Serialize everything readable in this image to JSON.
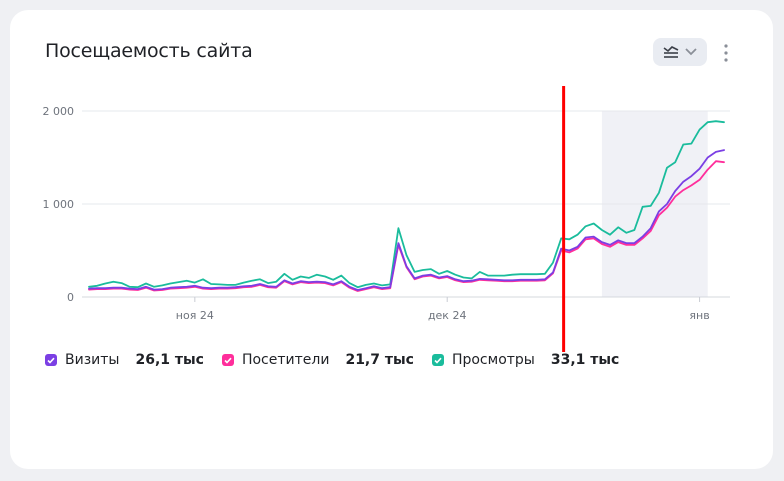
{
  "header": {
    "title": "Посещаемость сайта",
    "toggle_icon": "chart-settings-icon",
    "menu_icon": "more-vertical-icon"
  },
  "colors": {
    "visits": "#7b3fe4",
    "visitors": "#ff2e9b",
    "views": "#1abc9c",
    "annotation": "#ff0000",
    "shaded_period": "#f0f1f6"
  },
  "legend": [
    {
      "key": "visits",
      "name": "Визиты",
      "total": "26,1 тыс",
      "checked": true
    },
    {
      "key": "visitors",
      "name": "Посетители",
      "total": "21,7 тыс",
      "checked": true
    },
    {
      "key": "views",
      "name": "Просмотры",
      "total": "33,1 тыс",
      "checked": true
    }
  ],
  "chart_data": {
    "type": "line",
    "x_label_positions": {
      "ноя 24": 13,
      "дек 24": 44,
      "янв": 75
    },
    "xticks": [
      "ноя 24",
      "дек 24",
      "янв"
    ],
    "yticks": [
      "0",
      "1 000",
      "2 000"
    ],
    "ylim": [
      0,
      2000
    ],
    "grid": true,
    "shaded_range": [
      63,
      76
    ],
    "series": [
      {
        "name": "Визиты",
        "key": "visits",
        "values": [
          90,
          95,
          95,
          100,
          100,
          90,
          85,
          110,
          80,
          85,
          100,
          105,
          110,
          120,
          100,
          95,
          100,
          100,
          105,
          115,
          120,
          140,
          115,
          110,
          180,
          145,
          170,
          160,
          165,
          160,
          135,
          170,
          110,
          75,
          95,
          115,
          95,
          105,
          580,
          330,
          200,
          230,
          240,
          210,
          225,
          190,
          170,
          175,
          195,
          190,
          185,
          180,
          180,
          185,
          185,
          185,
          190,
          265,
          520,
          500,
          540,
          640,
          650,
          590,
          560,
          610,
          580,
          580,
          650,
          740,
          920,
          1000,
          1140,
          1240,
          1300,
          1380,
          1500,
          1560,
          1580
        ]
      },
      {
        "name": "Посетители",
        "key": "visitors",
        "values": [
          80,
          85,
          85,
          90,
          90,
          80,
          75,
          100,
          70,
          75,
          90,
          95,
          100,
          110,
          90,
          85,
          90,
          90,
          95,
          105,
          110,
          130,
          105,
          100,
          170,
          135,
          160,
          150,
          155,
          150,
          125,
          160,
          100,
          65,
          85,
          105,
          85,
          95,
          560,
          320,
          190,
          220,
          230,
          200,
          215,
          180,
          160,
          165,
          185,
          180,
          175,
          170,
          170,
          175,
          175,
          175,
          180,
          255,
          500,
          480,
          520,
          620,
          630,
          570,
          540,
          590,
          560,
          560,
          630,
          710,
          880,
          960,
          1080,
          1150,
          1200,
          1260,
          1370,
          1460,
          1450
        ]
      },
      {
        "name": "Просмотры",
        "key": "views",
        "values": [
          110,
          120,
          145,
          165,
          150,
          110,
          105,
          145,
          110,
          125,
          145,
          160,
          175,
          155,
          190,
          140,
          135,
          130,
          130,
          155,
          175,
          190,
          150,
          165,
          250,
          185,
          220,
          205,
          240,
          220,
          185,
          230,
          150,
          105,
          130,
          145,
          125,
          135,
          740,
          450,
          270,
          290,
          300,
          250,
          280,
          240,
          210,
          200,
          270,
          230,
          230,
          230,
          240,
          245,
          245,
          245,
          250,
          370,
          630,
          620,
          670,
          760,
          790,
          720,
          670,
          750,
          690,
          720,
          970,
          980,
          1120,
          1390,
          1450,
          1640,
          1650,
          1800,
          1880,
          1890,
          1880
        ]
      }
    ],
    "annotation": {
      "type": "vertical-line",
      "at": 58.3
    }
  }
}
